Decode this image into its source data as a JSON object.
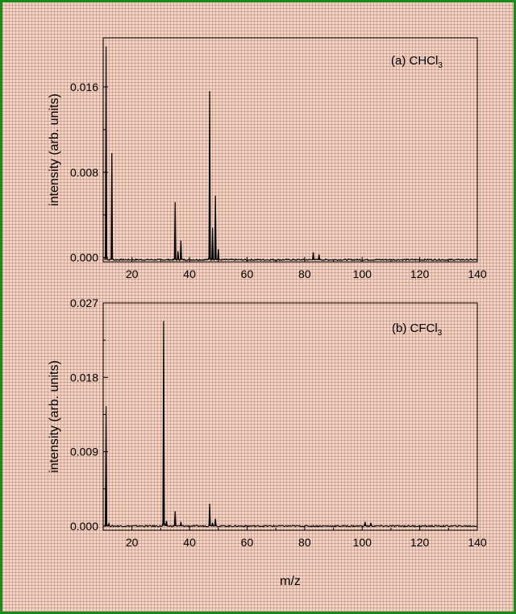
{
  "chart_data": [
    {
      "type": "line",
      "panel_label": "(a) CHCl",
      "panel_subscript": "3",
      "ylabel": "intensity (arb. units)",
      "xlabel": "",
      "xlim": [
        10,
        140
      ],
      "ylim": [
        -0.0004,
        0.0206
      ],
      "xticks": [
        20,
        40,
        60,
        80,
        100,
        120,
        140
      ],
      "xtick_labels": [
        "20",
        "40",
        "60",
        "80",
        "100",
        "120",
        "140"
      ],
      "yticks": [
        0.0,
        0.008,
        0.016
      ],
      "ytick_labels": [
        "0.000",
        "0.008",
        "0.016"
      ],
      "baseline": -0.0002,
      "peaks": [
        {
          "x": 11,
          "y": 0.0198
        },
        {
          "x": 13,
          "y": 0.0098
        },
        {
          "x": 35,
          "y": 0.0052
        },
        {
          "x": 36,
          "y": 0.0006
        },
        {
          "x": 37,
          "y": 0.0016
        },
        {
          "x": 47,
          "y": 0.0156
        },
        {
          "x": 48,
          "y": 0.0028
        },
        {
          "x": 49,
          "y": 0.0058
        },
        {
          "x": 50,
          "y": 0.0008
        },
        {
          "x": 83,
          "y": 0.0005
        },
        {
          "x": 85,
          "y": 0.0003
        }
      ]
    },
    {
      "type": "line",
      "panel_label": "(b) CFCl",
      "panel_subscript": "3",
      "ylabel": "intensity (arb. units)",
      "xlabel": "m/z",
      "xlim": [
        10,
        140
      ],
      "ylim": [
        -0.0005,
        0.027
      ],
      "xticks": [
        20,
        40,
        60,
        80,
        100,
        120,
        140
      ],
      "xtick_labels": [
        "20",
        "40",
        "60",
        "80",
        "100",
        "120",
        "140"
      ],
      "yticks": [
        0.0,
        0.009,
        0.018,
        0.027
      ],
      "ytick_labels": [
        "0.000",
        "0.009",
        "0.018",
        "0.027"
      ],
      "baseline": 0.0,
      "peaks": [
        {
          "x": 11,
          "y": 0.0145
        },
        {
          "x": 12,
          "y": 0.0003
        },
        {
          "x": 31,
          "y": 0.0248
        },
        {
          "x": 32,
          "y": 0.0006
        },
        {
          "x": 35,
          "y": 0.0018
        },
        {
          "x": 37,
          "y": 0.0005
        },
        {
          "x": 47,
          "y": 0.0027
        },
        {
          "x": 48,
          "y": 0.0004
        },
        {
          "x": 49,
          "y": 0.0009
        },
        {
          "x": 101,
          "y": 0.0005
        },
        {
          "x": 103,
          "y": 0.0004
        }
      ]
    }
  ]
}
